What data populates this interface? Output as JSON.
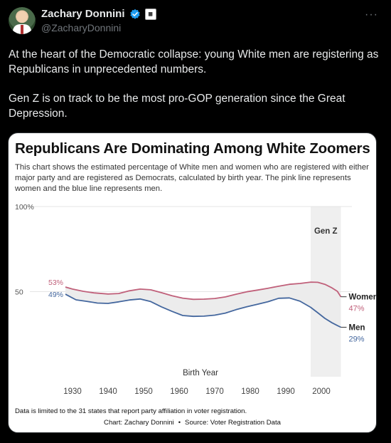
{
  "author": {
    "name": "Zachary Donnini",
    "handle": "@ZacharyDonnini",
    "verified_icon": "verified-badge-icon",
    "affiliate_icon": "affiliate-badge-icon"
  },
  "menu": {
    "more_label": "···"
  },
  "tweet": {
    "paragraphs": [
      "At the heart of the Democratic collapse: young White men are registering as Republicans in unprecedented numbers.",
      "Gen Z is on track to be the most pro-GOP generation since the Great Depression."
    ]
  },
  "chart_card": {
    "footnote": "Data is limited to the 31 states that report party affiliation in voter registration.",
    "credit_left": "Chart: Zachary Donnini",
    "credit_sep": "•",
    "credit_right": "Source: Voter Registration Data"
  },
  "chart_data": {
    "type": "line",
    "title": "Republicans Are Dominating Among White Zoomers",
    "subtitle": "This chart shows the estimated percentage of White men and women who are registered with either major party and are registered as Democrats, calculated by birth year. The pink line represents women and the blue line represents men.",
    "xlabel": "Birth Year",
    "ylabel": "",
    "xlim": [
      1925,
      2007
    ],
    "ylim": [
      0,
      100
    ],
    "x_ticks": [
      1930,
      1940,
      1950,
      1960,
      1970,
      1980,
      1990,
      2000
    ],
    "y_ticks": [
      {
        "value": 100,
        "label": "100%"
      },
      {
        "value": 50,
        "label": "50"
      }
    ],
    "shaded_region": {
      "label": "Gen Z",
      "x_start": 1997,
      "x_end": 2005.5
    },
    "fill_between": true,
    "series": [
      {
        "name": "Women",
        "color": "#c0607a",
        "start_label": "53%",
        "end_label": "47%",
        "x": [
          1928,
          1930,
          1933,
          1936,
          1940,
          1943,
          1946,
          1949,
          1952,
          1955,
          1958,
          1961,
          1964,
          1967,
          1970,
          1973,
          1976,
          1979,
          1982,
          1985,
          1988,
          1991,
          1994,
          1997,
          1999,
          2001,
          2003,
          2004.5,
          2005.5
        ],
        "values": [
          52.7,
          51.5,
          50.2,
          49.3,
          48.6,
          48.9,
          50.5,
          51.5,
          51.1,
          49.4,
          47.6,
          46.2,
          45.5,
          45.6,
          46.0,
          46.9,
          48.5,
          49.9,
          50.9,
          52.0,
          53.2,
          54.3,
          54.8,
          55.6,
          55.5,
          54.3,
          52.2,
          50.2,
          47.0
        ]
      },
      {
        "name": "Men",
        "color": "#44679e",
        "start_label": "49%",
        "end_label": "29%",
        "x": [
          1928,
          1929.5,
          1931,
          1934,
          1937,
          1940,
          1943,
          1946,
          1949,
          1952,
          1955,
          1958,
          1961,
          1964,
          1967,
          1970,
          1973,
          1976,
          1979,
          1982,
          1985,
          1988,
          1991,
          1994,
          1997,
          1999,
          2001,
          2003,
          2004.5,
          2005.5
        ],
        "values": [
          48.5,
          46.8,
          45.2,
          44.3,
          43.3,
          43.1,
          44.0,
          45.1,
          45.7,
          44.2,
          41.1,
          38.4,
          36.0,
          35.5,
          35.6,
          36.2,
          37.4,
          39.4,
          41.1,
          42.6,
          44.1,
          46.1,
          46.3,
          44.4,
          40.8,
          37.6,
          34.3,
          31.7,
          30.1,
          29.1
        ]
      }
    ]
  }
}
